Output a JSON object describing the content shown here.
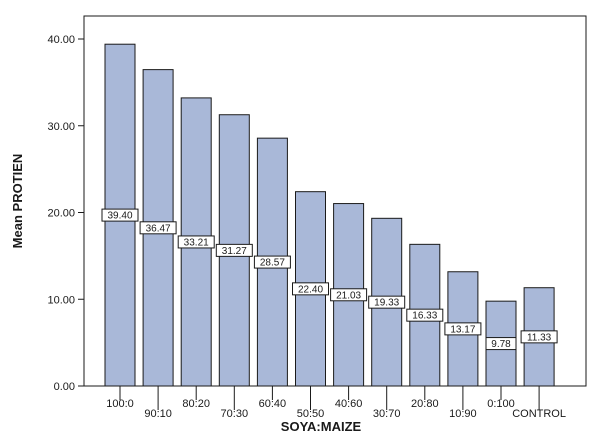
{
  "chart_data": {
    "type": "bar",
    "categories": [
      "100:0",
      "90:10",
      "80:20",
      "70:30",
      "60:40",
      "50:50",
      "40:60",
      "30:70",
      "20:80",
      "10:90",
      "0:100",
      "CONTROL"
    ],
    "values": [
      39.4,
      36.47,
      33.21,
      31.27,
      28.57,
      22.4,
      21.03,
      19.33,
      16.33,
      13.17,
      9.78,
      11.33
    ],
    "value_labels": [
      "39.40",
      "36.47",
      "33.21",
      "31.27",
      "28.57",
      "22.40",
      "21.03",
      "19.33",
      "16.33",
      "13.17",
      "9.78",
      "11.33"
    ],
    "xlabel": "SOYA:MAIZE",
    "ylabel": "Mean PROTIEN",
    "ylim": [
      0,
      45
    ],
    "yticks": [
      0,
      10,
      20,
      30,
      40
    ],
    "ytick_labels": [
      "0.00",
      "10.00",
      "20.00",
      "30.00",
      "40.00"
    ],
    "grid": false,
    "colors": {
      "bar_fill": "#a9b8d8",
      "bar_stroke": "#1a1a1a",
      "axis": "#1a1a1a"
    }
  }
}
